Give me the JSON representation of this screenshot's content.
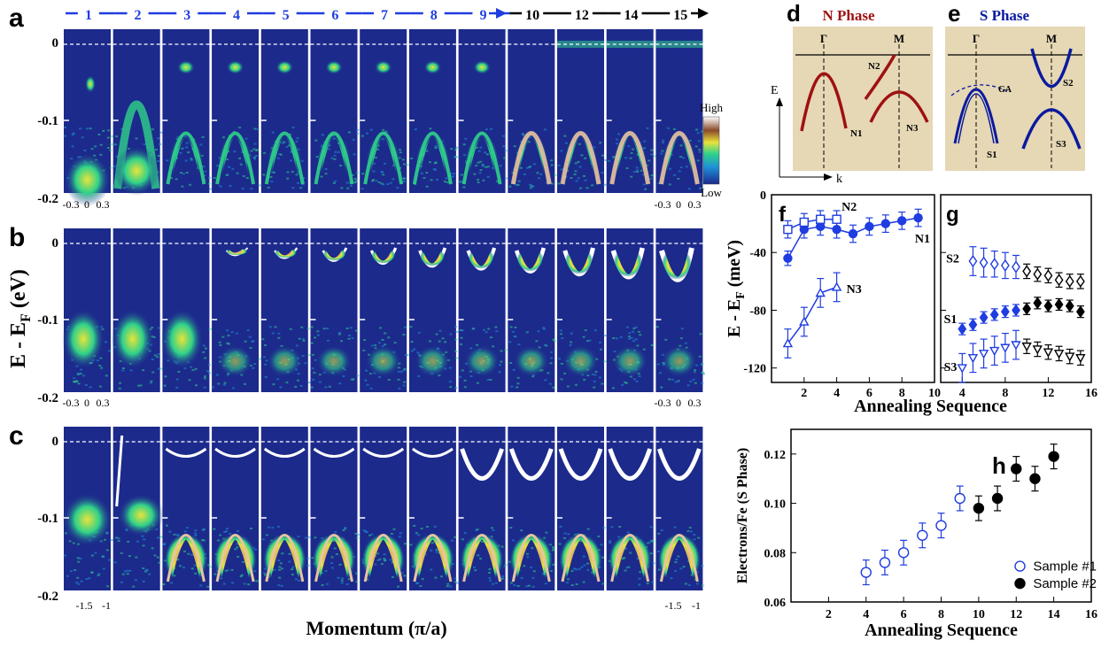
{
  "panel_letters": {
    "a": "a",
    "b": "b",
    "c": "c",
    "d": "d",
    "e": "e",
    "f": "f",
    "g": "g",
    "h": "h"
  },
  "sequence_labels": [
    "1",
    "2",
    "3",
    "4",
    "5",
    "6",
    "7",
    "8",
    "9",
    "10",
    "12",
    "14",
    "15"
  ],
  "colors": {
    "blue": "#1f3de0",
    "navy": "#0a1a9e",
    "darkred": "#9e1111",
    "beige": "#e6d7b5",
    "map_bg": "#1c2a8c"
  },
  "left_axis": {
    "ylabel": "E - E",
    "ylabel_sub": "F",
    "ylabel_unit": "(eV)",
    "yticks": [
      "0",
      "-0.1",
      "-0.2"
    ],
    "xlabel": "Momentum (π/a)",
    "a_xticks_left": [
      "-0.3",
      "0",
      "0.3"
    ],
    "a_xticks_right": [
      "-0.3",
      "0",
      "0.3"
    ],
    "b_xticks_left": [
      "-0.3",
      "0",
      "0.3"
    ],
    "b_xticks_right": [
      "-0.3",
      "0",
      "0.3"
    ],
    "c_xticks_left": [
      "-1.5",
      "-1"
    ],
    "c_xticks_right": [
      "-1.5",
      "-1"
    ]
  },
  "colorbar": {
    "high": "High",
    "low": "Low"
  },
  "panel_d": {
    "title": "N Phase",
    "gamma": "Γ",
    "m": "M",
    "e_axis": "E",
    "k_axis": "k",
    "bands": [
      "N1",
      "N2",
      "N3"
    ]
  },
  "panel_e": {
    "title": "S Phase",
    "gamma": "Γ",
    "m": "M",
    "bands": [
      "S1",
      "S2",
      "S3"
    ],
    "ga": "GA"
  },
  "panel_f": {
    "ylabel": "E - E",
    "ylabel_sub": "F",
    "ylabel_unit": "(meV)",
    "yticks": [
      "0",
      "-40",
      "-80",
      "-120"
    ],
    "xticks": [
      "2",
      "4",
      "6",
      "8",
      "10"
    ],
    "labels": {
      "n1": "N1",
      "n2": "N2",
      "n3": "N3"
    }
  },
  "panel_g": {
    "xticks": [
      "4",
      "8",
      "12",
      "16"
    ],
    "labels": {
      "s1": "S1",
      "s2": "S2",
      "s3": "S3"
    }
  },
  "fg_xlabel": "Annealing Sequence",
  "chart_data": [
    {
      "type": "line",
      "panel": "f",
      "xlim": [
        0,
        10
      ],
      "ylim": [
        -130,
        0
      ],
      "series": [
        {
          "name": "N1",
          "marker": "filled-circle",
          "x": [
            1,
            2,
            3,
            4,
            5,
            6,
            7,
            8,
            9
          ],
          "y": [
            -44,
            -24,
            -22,
            -24,
            -27,
            -22,
            -20,
            -18,
            -16
          ],
          "err": [
            5,
            6,
            6,
            6,
            6,
            6,
            6,
            6,
            6
          ]
        },
        {
          "name": "N2",
          "marker": "open-square",
          "x": [
            1,
            2,
            3,
            4
          ],
          "y": [
            -24,
            -19,
            -17,
            -17
          ],
          "err": [
            6,
            6,
            6,
            6
          ]
        },
        {
          "name": "N3",
          "marker": "open-triangle",
          "x": [
            1,
            2,
            3,
            4
          ],
          "y": [
            -103,
            -88,
            -68,
            -64
          ],
          "err": [
            10,
            10,
            10,
            10
          ]
        }
      ]
    },
    {
      "type": "scatter",
      "panel": "g",
      "xlim": [
        2,
        16
      ],
      "ylim": [
        -130,
        0
      ],
      "series": [
        {
          "name": "S2",
          "marker": "open-diamond",
          "x": [
            5,
            6,
            7,
            8,
            9,
            10,
            11,
            12,
            13,
            14,
            15
          ],
          "y": [
            -46,
            -47,
            -48,
            -49,
            -50,
            -53,
            -55,
            -56,
            -59,
            -60,
            -60
          ],
          "err": [
            10,
            10,
            9,
            9,
            8,
            5,
            5,
            5,
            5,
            5,
            5
          ]
        },
        {
          "name": "S1",
          "marker": "filled-diamond",
          "x": [
            4,
            5,
            6,
            7,
            8,
            9,
            10,
            11,
            12,
            13,
            14,
            15
          ],
          "y": [
            -93,
            -90,
            -85,
            -83,
            -81,
            -80,
            -79,
            -75,
            -77,
            -76,
            -77,
            -81
          ],
          "err": [
            4,
            4,
            4,
            4,
            4,
            4,
            4,
            4,
            4,
            4,
            4,
            4
          ]
        },
        {
          "name": "S3",
          "marker": "open-triangle-down",
          "x": [
            4,
            5,
            6,
            7,
            8,
            9,
            10,
            11,
            12,
            13,
            14,
            15
          ],
          "y": [
            -120,
            -113,
            -110,
            -108,
            -106,
            -104,
            -105,
            -107,
            -109,
            -110,
            -112,
            -113
          ],
          "err": [
            10,
            10,
            10,
            10,
            10,
            10,
            5,
            5,
            5,
            5,
            5,
            5
          ]
        }
      ]
    },
    {
      "type": "scatter",
      "panel": "h",
      "ylabel": "Electrons/Fe (S Phase)",
      "xlabel": "Annealing Sequence",
      "xlim": [
        0,
        16
      ],
      "ylim": [
        0.06,
        0.13
      ],
      "xticks": [
        "2",
        "4",
        "6",
        "8",
        "10",
        "12",
        "14",
        "16"
      ],
      "yticks": [
        "0.06",
        "0.08",
        "0.10",
        "0.12"
      ],
      "legend": "bottom-right",
      "series": [
        {
          "name": "Sample #1",
          "marker": "open-circle",
          "x": [
            4,
            5,
            6,
            7,
            8,
            9
          ],
          "y": [
            0.072,
            0.076,
            0.08,
            0.087,
            0.091,
            0.102
          ],
          "err": [
            0.005,
            0.005,
            0.005,
            0.005,
            0.005,
            0.005
          ]
        },
        {
          "name": "Sample #2",
          "marker": "filled-circle",
          "x": [
            10,
            11,
            12,
            13,
            14
          ],
          "y": [
            0.098,
            0.102,
            0.114,
            0.11,
            0.119
          ],
          "err": [
            0.005,
            0.005,
            0.005,
            0.005,
            0.005
          ]
        }
      ]
    }
  ]
}
